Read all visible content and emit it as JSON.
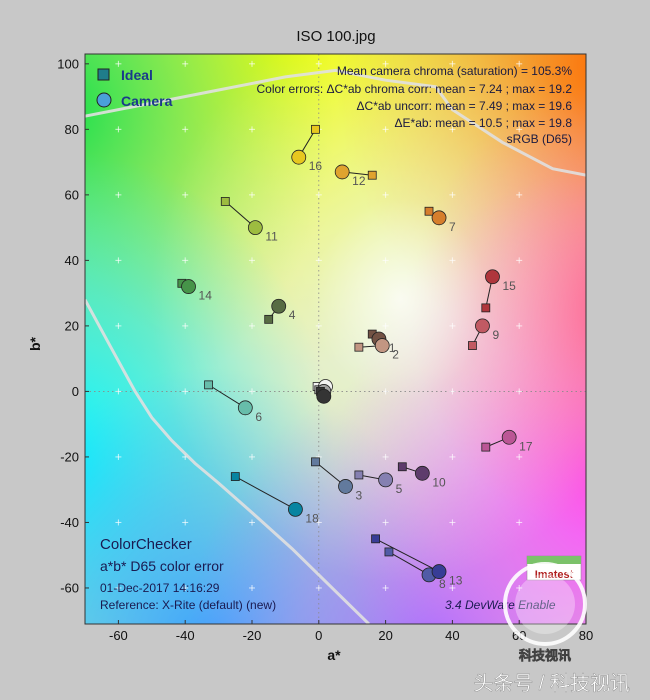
{
  "title": "ISO 100.jpg",
  "legend": {
    "ideal_label": "Ideal",
    "camera_label": "Camera"
  },
  "stats": {
    "line1": "Mean camera chroma (saturation) = 105.3%",
    "line2": "Color errors: ΔC*ab chroma corr:  mean = 7.24 ;  max = 19.2",
    "line3": "ΔC*ab uncorr:  mean = 7.49 ;  max = 19.6",
    "line4": "ΔE*ab:  mean = 10.5 ;  max = 19.8",
    "line5": "sRGB (D65)"
  },
  "info": {
    "line1": "ColorChecker",
    "line2": "a*b* D65 color error",
    "line3": "01-Dec-2017 14:16:29",
    "line4": "Reference: X-Rite (default) (new)"
  },
  "version_text": "3.4  DevWare  Enable",
  "logo_text": "Imatest",
  "watermark": {
    "logo": "科技视讯",
    "caption": "头条号 / 科技视讯"
  },
  "chart_data": {
    "type": "scatter",
    "title": "ISO 100.jpg",
    "xlabel": "a*",
    "ylabel": "b*",
    "xlim": [
      -70,
      80
    ],
    "ylim": [
      -71,
      103
    ],
    "xticks": [
      -60,
      -40,
      -20,
      0,
      20,
      40,
      60,
      80
    ],
    "yticks": [
      -60,
      -40,
      -20,
      0,
      20,
      40,
      60,
      80,
      100
    ],
    "legend_position": "top-left",
    "series": [
      {
        "name": "Ideal",
        "marker": "square"
      },
      {
        "name": "Camera",
        "marker": "circle"
      }
    ],
    "patches": [
      {
        "id": "1",
        "ideal": [
          16,
          17.5
        ],
        "camera": [
          18,
          16
        ],
        "color": "#735244"
      },
      {
        "id": "2",
        "ideal": [
          12,
          13.5
        ],
        "camera": [
          19,
          14
        ],
        "color": "#c29682"
      },
      {
        "id": "3",
        "ideal": [
          -1,
          -21.5
        ],
        "camera": [
          8,
          -29
        ],
        "color": "#627a9d"
      },
      {
        "id": "4",
        "ideal": [
          -15,
          22
        ],
        "camera": [
          -12,
          26
        ],
        "color": "#576c43"
      },
      {
        "id": "5",
        "ideal": [
          12,
          -25.5
        ],
        "camera": [
          20,
          -27
        ],
        "color": "#8580b1"
      },
      {
        "id": "6",
        "ideal": [
          -33,
          2
        ],
        "camera": [
          -22,
          -5
        ],
        "color": "#67bdaa"
      },
      {
        "id": "7",
        "ideal": [
          33,
          55
        ],
        "camera": [
          36,
          53
        ],
        "color": "#d67e2c"
      },
      {
        "id": "8",
        "ideal": [
          21,
          -49
        ],
        "camera": [
          33,
          -56
        ],
        "color": "#505ba6"
      },
      {
        "id": "9",
        "ideal": [
          46,
          14
        ],
        "camera": [
          49,
          20
        ],
        "color": "#c15a63"
      },
      {
        "id": "10",
        "ideal": [
          25,
          -23
        ],
        "camera": [
          31,
          -25
        ],
        "color": "#5e3c6c"
      },
      {
        "id": "11",
        "ideal": [
          -28,
          58
        ],
        "camera": [
          -19,
          50
        ],
        "color": "#9dbc40"
      },
      {
        "id": "12",
        "ideal": [
          16,
          66
        ],
        "camera": [
          7,
          67
        ],
        "color": "#e0a32e"
      },
      {
        "id": "13",
        "ideal": [
          17,
          -45
        ],
        "camera": [
          36,
          -55
        ],
        "color": "#383d96"
      },
      {
        "id": "14",
        "ideal": [
          -41,
          33
        ],
        "camera": [
          -39,
          32
        ],
        "color": "#469449"
      },
      {
        "id": "15",
        "ideal": [
          50,
          25.5
        ],
        "camera": [
          52,
          35
        ],
        "color": "#af363c"
      },
      {
        "id": "16",
        "ideal": [
          -1,
          80
        ],
        "camera": [
          -6,
          71.5
        ],
        "color": "#e7c71f"
      },
      {
        "id": "17",
        "ideal": [
          50,
          -17
        ],
        "camera": [
          57,
          -14
        ],
        "color": "#bb5695"
      },
      {
        "id": "18",
        "ideal": [
          -25,
          -26
        ],
        "camera": [
          -7,
          -36
        ],
        "color": "#0885a1"
      }
    ],
    "neutrals": [
      {
        "ideal": [
          -0.5,
          1.5
        ],
        "camera": [
          2,
          1.5
        ],
        "color": "#f3f3f2"
      },
      {
        "ideal": [
          0,
          0.5
        ],
        "camera": [
          1.5,
          0
        ],
        "color": "#a0a0a0"
      },
      {
        "ideal": [
          0.5,
          0
        ],
        "camera": [
          1.5,
          -1.5
        ],
        "color": "#343434"
      }
    ],
    "gamut_boundary": [
      [
        -70,
        28
      ],
      [
        -62,
        13
      ],
      [
        -55,
        0
      ],
      [
        -50,
        -8
      ],
      [
        -44,
        -15
      ],
      [
        -37,
        -22
      ],
      [
        -30,
        -28
      ],
      [
        -20,
        -37
      ],
      [
        -8,
        -48
      ],
      [
        2,
        -58
      ],
      [
        12,
        -68
      ],
      [
        15,
        -71
      ]
    ],
    "upper_boundary": [
      [
        -70,
        84
      ],
      [
        -50,
        88
      ],
      [
        -30,
        92
      ],
      [
        -10,
        96
      ],
      [
        5,
        98
      ],
      [
        10,
        97
      ],
      [
        20,
        95
      ],
      [
        35,
        93
      ],
      [
        40,
        86
      ],
      [
        55,
        76
      ],
      [
        70,
        68
      ],
      [
        80,
        66
      ]
    ]
  }
}
